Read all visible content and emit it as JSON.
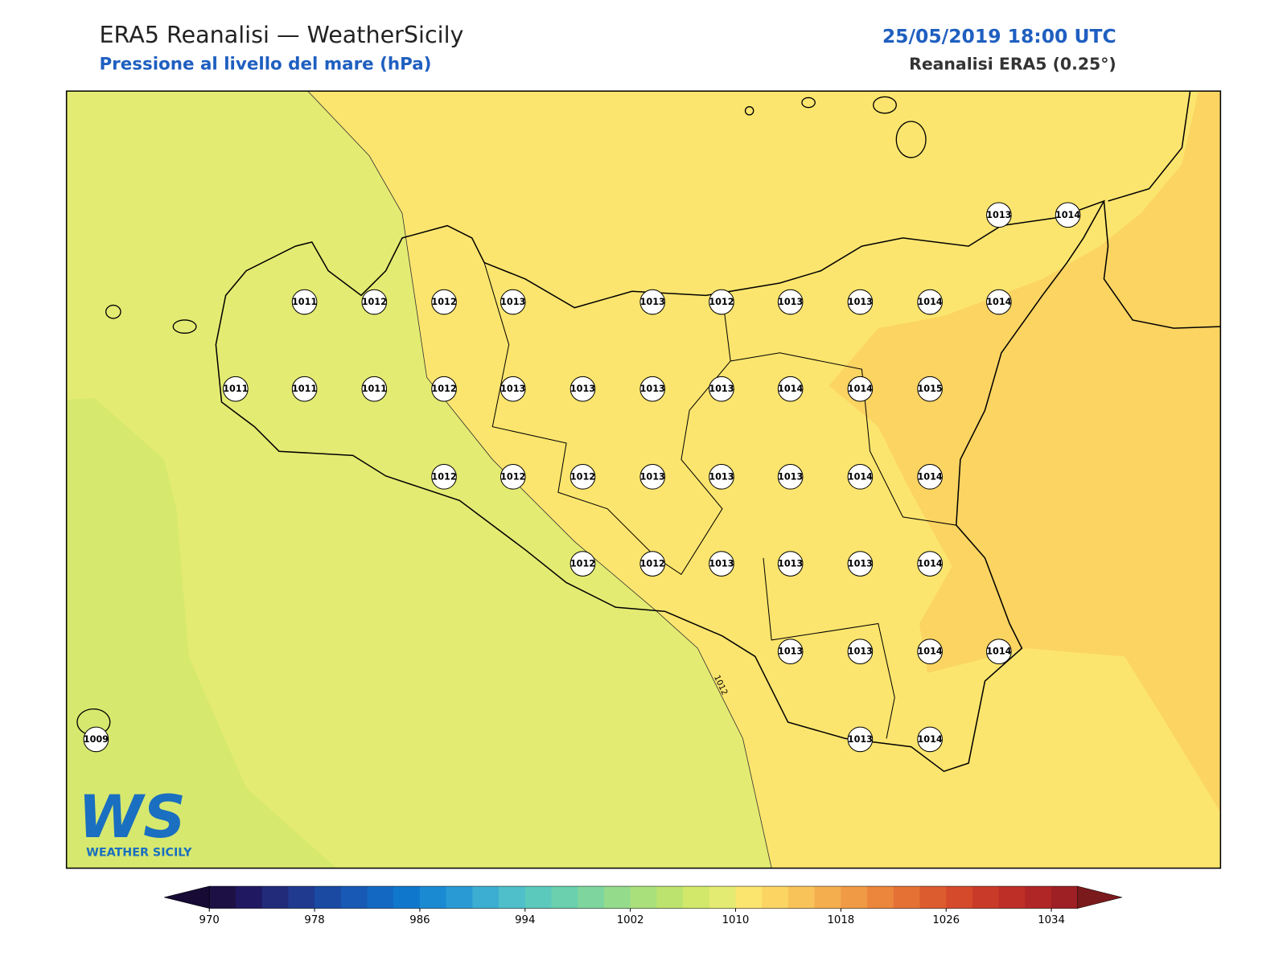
{
  "header": {
    "title": "ERA5 Reanalisi — WeatherSicily",
    "subtitle": "Pressione al livello del mare (hPa)",
    "datetime": "25/05/2019 18:00 UTC",
    "source": "Reanalisi ERA5 (0.25°)"
  },
  "map": {
    "contour_label": "1012",
    "stations": [
      1013,
      1014,
      1011,
      1012,
      1012,
      1013,
      1013,
      1012,
      1013,
      1013,
      1014,
      1014,
      1011,
      1011,
      1011,
      1012,
      1013,
      1013,
      1013,
      1013,
      1014,
      1014,
      1015,
      1012,
      1012,
      1012,
      1013,
      1013,
      1013,
      1014,
      1014,
      1012,
      1012,
      1013,
      1013,
      1013,
      1014,
      1013,
      1013,
      1014,
      1014,
      1009,
      1013,
      1014
    ]
  },
  "logo": {
    "mark": "WS",
    "text": "WEATHER SICILY"
  },
  "colorbar": {
    "ticks": [
      970,
      978,
      986,
      994,
      1002,
      1010,
      1018,
      1026,
      1034
    ]
  }
}
